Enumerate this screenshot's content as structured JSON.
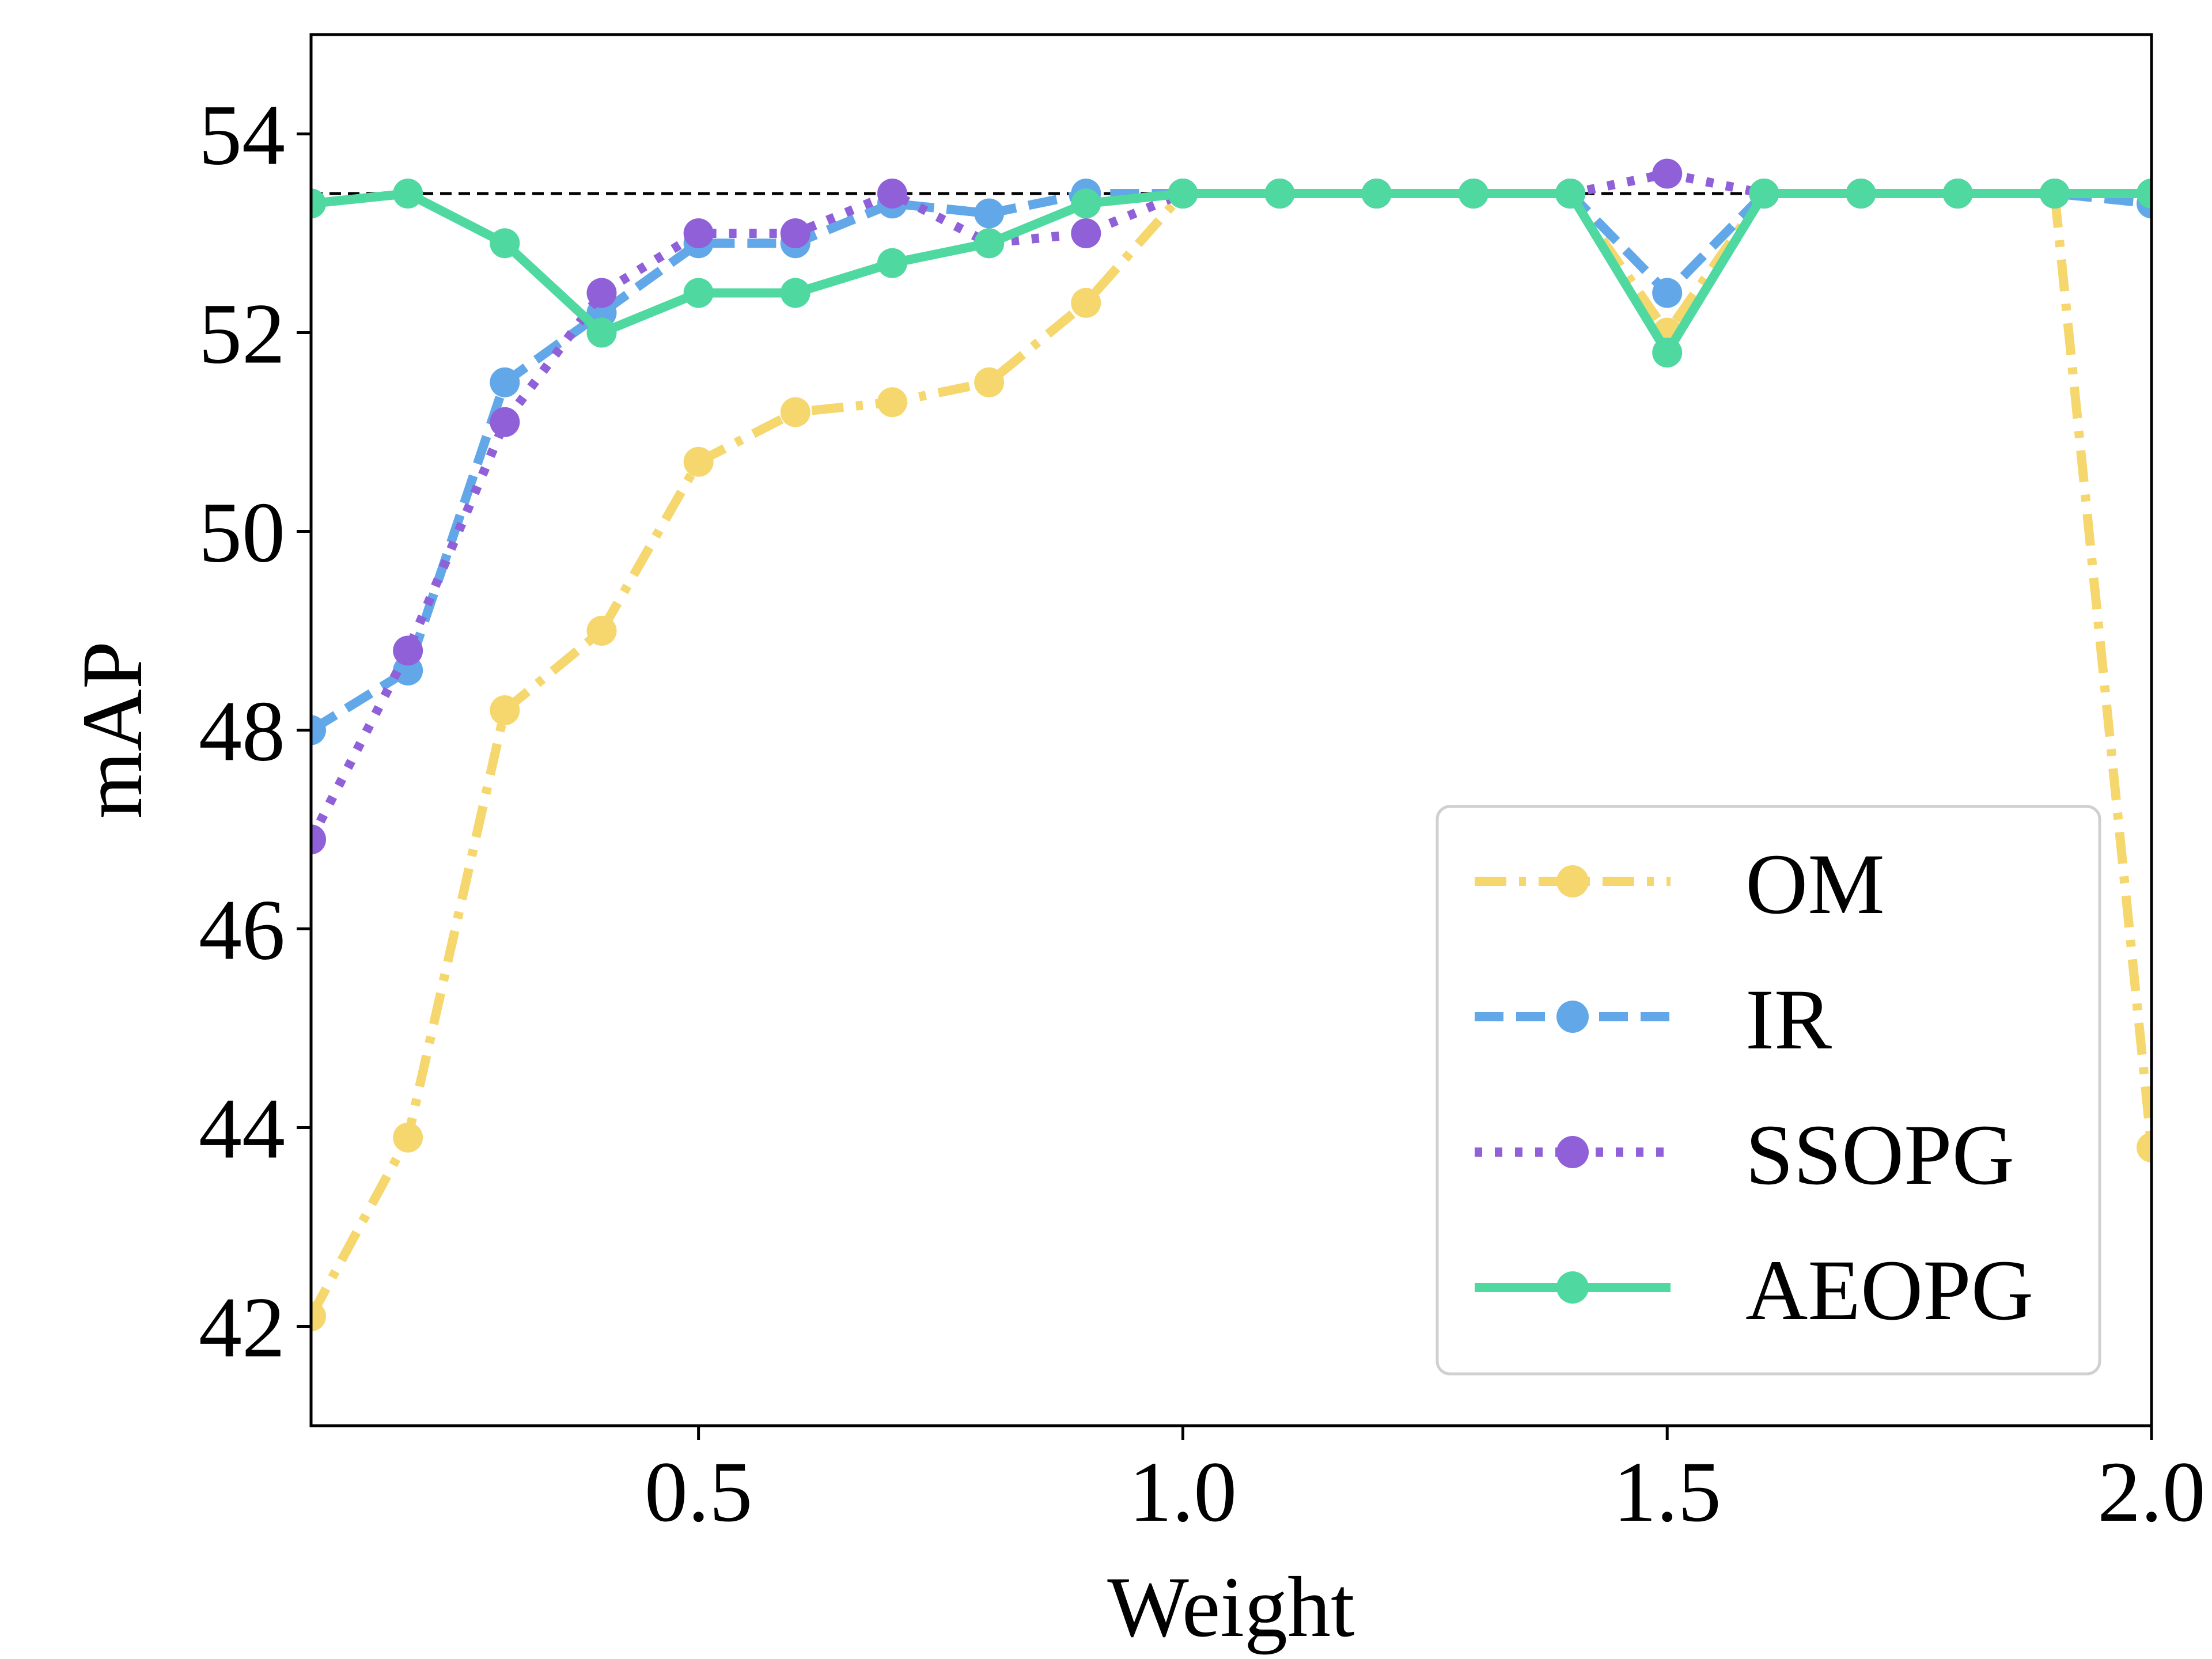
{
  "chart_data": {
    "type": "line",
    "title": "",
    "xlabel": "Weight",
    "ylabel": "mAP",
    "xlim": [
      0.1,
      2.0
    ],
    "ylim": [
      41.0,
      55.0
    ],
    "xticks": [
      0.5,
      1.0,
      1.5,
      2.0
    ],
    "xtick_labels": [
      "0.5",
      "1.0",
      "1.5",
      "2.0"
    ],
    "yticks": [
      42,
      44,
      46,
      48,
      50,
      52,
      54
    ],
    "ytick_labels": [
      "42",
      "44",
      "46",
      "48",
      "50",
      "52",
      "54"
    ],
    "grid": false,
    "legend_position": "lower-right",
    "reference_line": {
      "y": 53.4,
      "style": "dashed",
      "color": "#000000"
    },
    "x": [
      0.1,
      0.2,
      0.3,
      0.4,
      0.5,
      0.6,
      0.7,
      0.8,
      0.9,
      1.0,
      1.1,
      1.2,
      1.3,
      1.4,
      1.5,
      1.6,
      1.7,
      1.8,
      1.9,
      2.0
    ],
    "series": [
      {
        "name": "OM",
        "color": "#f5d76e",
        "style": "dashdot",
        "values": [
          42.1,
          43.9,
          48.2,
          49.0,
          50.7,
          51.2,
          51.3,
          51.5,
          52.3,
          53.4,
          53.4,
          53.4,
          53.4,
          53.4,
          52.0,
          53.4,
          53.4,
          53.4,
          53.4,
          43.8
        ]
      },
      {
        "name": "IR",
        "color": "#62a8e8",
        "style": "dashed",
        "values": [
          48.0,
          48.6,
          51.5,
          52.2,
          52.9,
          52.9,
          53.3,
          53.2,
          53.4,
          53.4,
          53.4,
          53.4,
          53.4,
          53.4,
          52.4,
          53.4,
          53.4,
          53.4,
          53.4,
          53.3
        ]
      },
      {
        "name": "SSOPG",
        "color": "#9060d8",
        "style": "dotted",
        "values": [
          46.9,
          48.8,
          51.1,
          52.4,
          53.0,
          53.0,
          53.4,
          52.9,
          53.0,
          53.4,
          53.4,
          53.4,
          53.4,
          53.4,
          53.6,
          53.4,
          53.4,
          53.4,
          53.4,
          53.4
        ]
      },
      {
        "name": "AEOPG",
        "color": "#4fd9a0",
        "style": "solid",
        "values": [
          53.3,
          53.4,
          52.9,
          52.0,
          52.4,
          52.4,
          52.7,
          52.9,
          53.3,
          53.4,
          53.4,
          53.4,
          53.4,
          53.4,
          51.8,
          53.4,
          53.4,
          53.4,
          53.4,
          53.4
        ]
      }
    ]
  }
}
